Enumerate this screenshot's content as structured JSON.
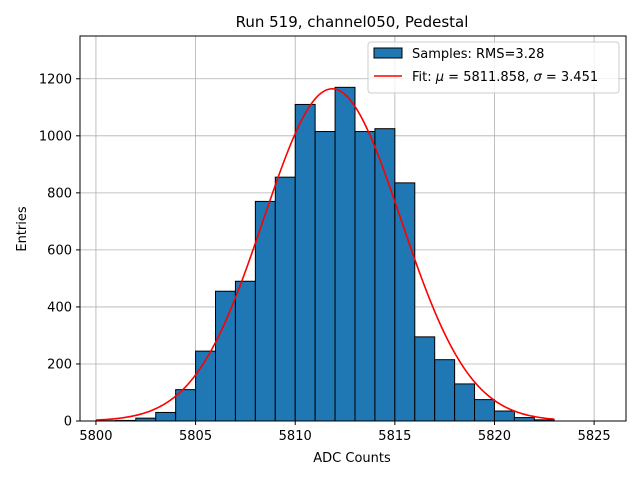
{
  "chart_data": {
    "type": "bar",
    "title": "Run 519, channel050, Pedestal",
    "xlabel": "ADC Counts",
    "ylabel": "Entries",
    "xlim": [
      5799.2,
      5826.6
    ],
    "ylim": [
      0,
      1350
    ],
    "xticks": [
      5800,
      5805,
      5810,
      5815,
      5820,
      5825
    ],
    "yticks": [
      0,
      200,
      400,
      600,
      800,
      1000,
      1200
    ],
    "grid": true,
    "legend_position": "top-right",
    "histogram": {
      "name": "Samples: RMS=3.28",
      "color": "#1f77b4",
      "bin_width": 1,
      "bin_starts": [
        5800,
        5801,
        5802,
        5803,
        5804,
        5805,
        5806,
        5807,
        5808,
        5809,
        5810,
        5811,
        5812,
        5813,
        5814,
        5815,
        5816,
        5817,
        5818,
        5819,
        5820,
        5821,
        5822
      ],
      "counts": [
        1,
        2,
        10,
        30,
        110,
        245,
        455,
        490,
        770,
        855,
        1110,
        1015,
        1170,
        1015,
        1025,
        835,
        295,
        215,
        130,
        75,
        35,
        12,
        4
      ]
    },
    "fit": {
      "name_prefix": "Fit: ",
      "mu_symbol": "μ",
      "mu_text": " = 5811.858, ",
      "sigma_symbol": "σ",
      "sigma_text": " = 3.451",
      "color": "#ff0000",
      "mu": 5811.858,
      "sigma": 3.451,
      "amplitude": 1165,
      "x_range": [
        5800,
        5823
      ]
    }
  }
}
